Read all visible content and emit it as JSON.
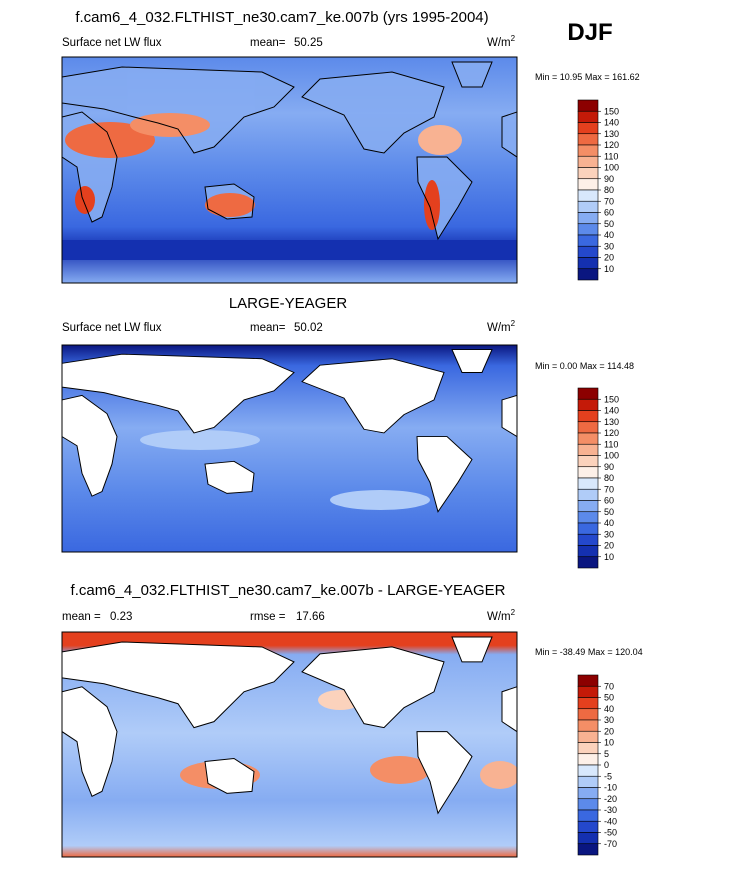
{
  "season": "DJF",
  "panels": [
    {
      "title": "f.cam6_4_032.FLTHIST_ne30.cam7_ke.007b (yrs 1995-2004)",
      "left": "Surface net LW flux",
      "stat_label": "mean=",
      "stat": 50.25,
      "units": "W/m",
      "units_exp": "2",
      "min_label": "Min =",
      "min": 10.95,
      "max_label": "Max =",
      "max": 161.62,
      "colorbar": {
        "levels": [
          150,
          140,
          130,
          120,
          110,
          100,
          90,
          80,
          70,
          60,
          50,
          40,
          30,
          20,
          10
        ],
        "colors": [
          "#8c0000",
          "#c41a08",
          "#e4401e",
          "#ee6a42",
          "#f48e66",
          "#f8b292",
          "#fbd2bc",
          "#fdf0e8",
          "#d8e8fc",
          "#b0ccf8",
          "#86acf2",
          "#5c8aea",
          "#3a68e0",
          "#2448cc",
          "#1430b0",
          "#0a1680"
        ]
      }
    },
    {
      "title": "LARGE-YEAGER",
      "left": "Surface net LW flux",
      "stat_label": "mean=",
      "stat": 50.02,
      "units": "W/m",
      "units_exp": "2",
      "min_label": "Min =",
      "min": 0.0,
      "min_text": "0.00",
      "max_label": "Max =",
      "max": 114.48,
      "colorbar": {
        "levels": [
          150,
          140,
          130,
          120,
          110,
          100,
          90,
          80,
          70,
          60,
          50,
          40,
          30,
          20,
          10
        ],
        "colors": [
          "#8c0000",
          "#c41a08",
          "#e4401e",
          "#ee6a42",
          "#f48e66",
          "#f8b292",
          "#fbd2bc",
          "#fdf0e8",
          "#d8e8fc",
          "#b0ccf8",
          "#86acf2",
          "#5c8aea",
          "#3a68e0",
          "#2448cc",
          "#1430b0",
          "#0a1680"
        ]
      }
    },
    {
      "title": "f.cam6_4_032.FLTHIST_ne30.cam7_ke.007b - LARGE-YEAGER",
      "left_label": "mean =",
      "left_value": 0.23,
      "stat_label": "rmse =",
      "stat": 17.66,
      "units": "W/m",
      "units_exp": "2",
      "min_label": "Min =",
      "min": -38.49,
      "max_label": "Max =",
      "max": 120.04,
      "colorbar": {
        "levels": [
          70,
          50,
          40,
          30,
          20,
          10,
          5,
          0,
          -5,
          -10,
          -20,
          -30,
          -40,
          -50,
          -70
        ],
        "colors": [
          "#8c0000",
          "#c41a08",
          "#e4401e",
          "#ee6a42",
          "#f48e66",
          "#f8b292",
          "#fbd2bc",
          "#fdf0e8",
          "#d8e8fc",
          "#b0ccf8",
          "#86acf2",
          "#5c8aea",
          "#3a68e0",
          "#2448cc",
          "#1430b0",
          "#0a1680"
        ]
      }
    }
  ]
}
